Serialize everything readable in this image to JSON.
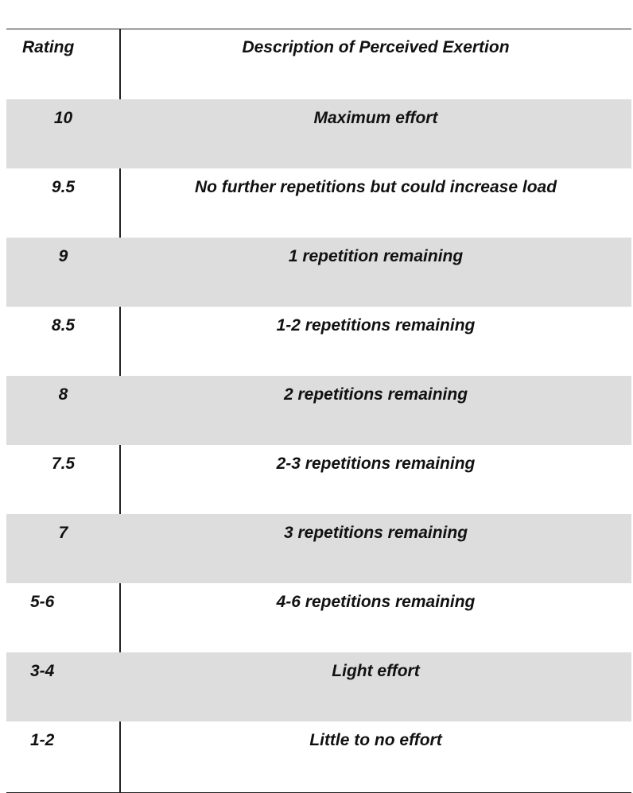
{
  "table": {
    "headers": {
      "rating": "Rating",
      "description": "Description of Perceived Exertion"
    },
    "rows": [
      {
        "rating": "10",
        "description": "Maximum effort",
        "shaded": true,
        "align": "center"
      },
      {
        "rating": "9.5",
        "description": "No further repetitions but could increase load",
        "shaded": false,
        "align": "center"
      },
      {
        "rating": "9",
        "description": "1 repetition remaining",
        "shaded": true,
        "align": "center"
      },
      {
        "rating": "8.5",
        "description": "1-2 repetitions remaining",
        "shaded": false,
        "align": "center"
      },
      {
        "rating": "8",
        "description": "2 repetitions remaining",
        "shaded": true,
        "align": "center"
      },
      {
        "rating": "7.5",
        "description": "2-3 repetitions remaining",
        "shaded": false,
        "align": "center"
      },
      {
        "rating": "7",
        "description": "3 repetitions remaining",
        "shaded": true,
        "align": "center"
      },
      {
        "rating": "5-6",
        "description": "4-6 repetitions remaining",
        "shaded": false,
        "align": "left"
      },
      {
        "rating": "3-4",
        "description": "Light effort",
        "shaded": true,
        "align": "left"
      },
      {
        "rating": "1-2",
        "description": "Little to no effort",
        "shaded": false,
        "align": "left"
      }
    ],
    "colors": {
      "shade": "#dddddd",
      "rule": "#222222"
    }
  }
}
